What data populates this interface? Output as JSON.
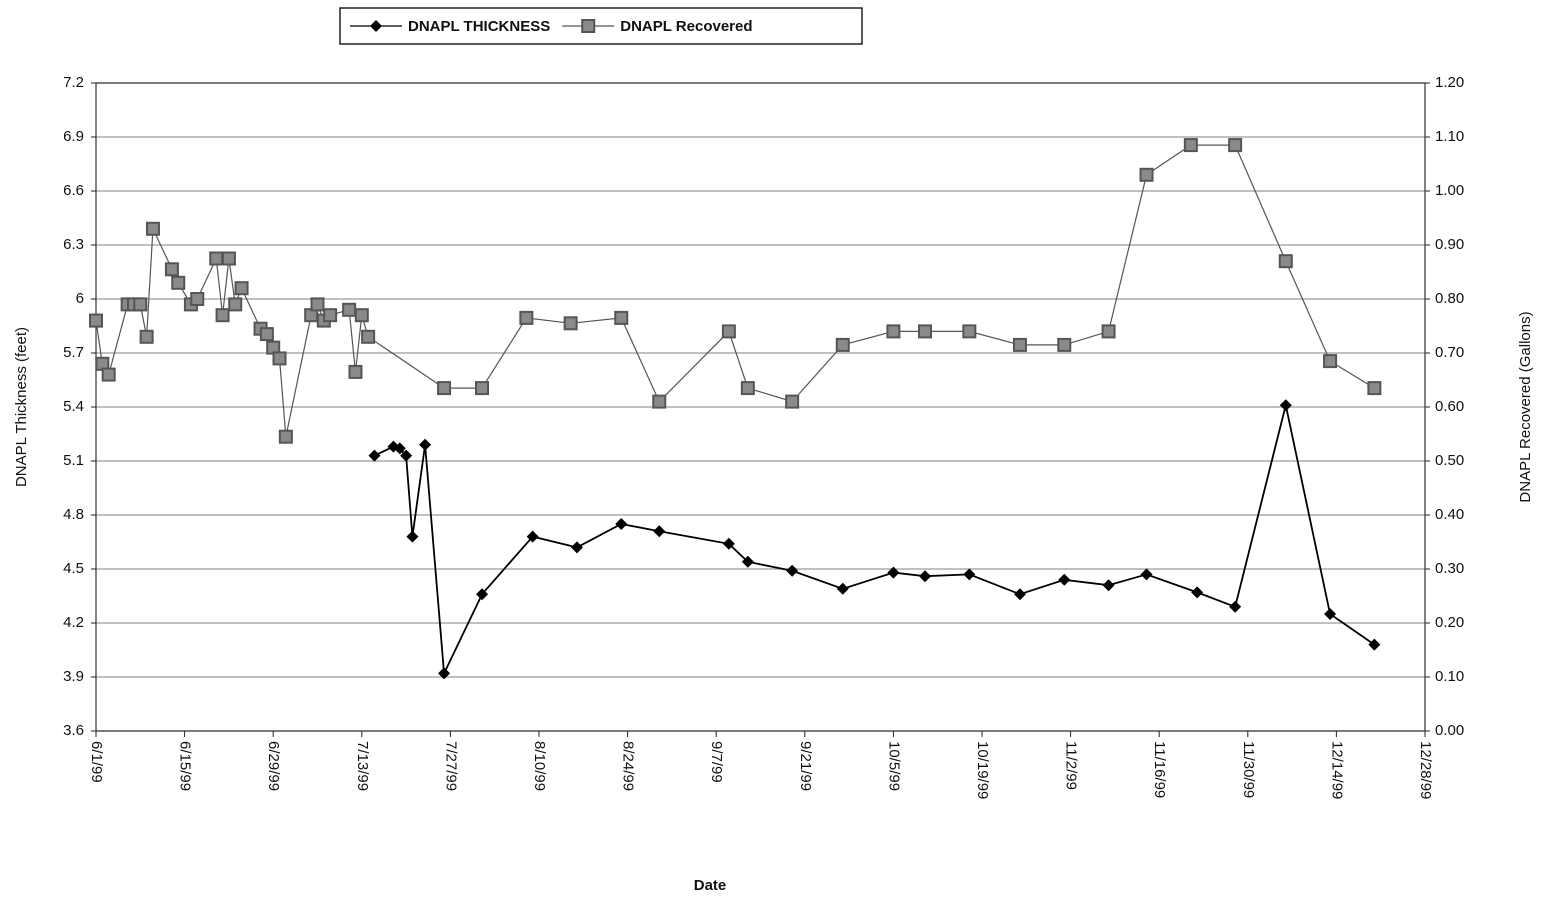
{
  "chart_data": {
    "type": "line",
    "xlabel": "Date",
    "ylabel": "DNAPL Thickness (feet)",
    "y2label": "DNAPL Recovered (Gallons)",
    "xlim": [
      "1999-06-01",
      "1999-12-28"
    ],
    "xticks": [
      {
        "value": "1999-06-01",
        "label": "6/1/99"
      },
      {
        "value": "1999-06-15",
        "label": "6/15/99"
      },
      {
        "value": "1999-06-29",
        "label": "6/29/99"
      },
      {
        "value": "1999-07-13",
        "label": "7/13/99"
      },
      {
        "value": "1999-07-27",
        "label": "7/27/99"
      },
      {
        "value": "1999-08-10",
        "label": "8/10/99"
      },
      {
        "value": "1999-08-24",
        "label": "8/24/99"
      },
      {
        "value": "1999-09-07",
        "label": "9/7/99"
      },
      {
        "value": "1999-09-21",
        "label": "9/21/99"
      },
      {
        "value": "1999-10-05",
        "label": "10/5/99"
      },
      {
        "value": "1999-10-19",
        "label": "10/19/99"
      },
      {
        "value": "1999-11-02",
        "label": "11/2/99"
      },
      {
        "value": "1999-11-16",
        "label": "11/16/99"
      },
      {
        "value": "1999-11-30",
        "label": "11/30/99"
      },
      {
        "value": "1999-12-14",
        "label": "12/14/99"
      },
      {
        "value": "1999-12-28",
        "label": "12/28/99"
      }
    ],
    "ylim": [
      3.6,
      7.2
    ],
    "yticks": [
      3.6,
      3.9,
      4.2,
      4.5,
      4.8,
      5.1,
      5.4,
      5.7,
      6,
      6.3,
      6.6,
      6.9,
      7.2
    ],
    "y2lim": [
      0,
      1.2
    ],
    "y2ticks": [
      {
        "value": 0,
        "label": "0.00"
      },
      {
        "value": 0.1,
        "label": "0.10"
      },
      {
        "value": 0.2,
        "label": "0.20"
      },
      {
        "value": 0.3,
        "label": "0.30"
      },
      {
        "value": 0.4,
        "label": "0.40"
      },
      {
        "value": 0.5,
        "label": "0.50"
      },
      {
        "value": 0.6,
        "label": "0.60"
      },
      {
        "value": 0.7,
        "label": "0.70"
      },
      {
        "value": 0.8,
        "label": "0.80"
      },
      {
        "value": 0.9,
        "label": "0.90"
      },
      {
        "value": 1.0,
        "label": "1.00"
      },
      {
        "value": 1.1,
        "label": "1.10"
      },
      {
        "value": 1.2,
        "label": "1.20"
      }
    ],
    "grid": true,
    "legend": "top",
    "series": [
      {
        "name": "DNAPL THICKNESS",
        "color": "#000000",
        "marker": "diamond",
        "axis": "y",
        "x": [
          "1999-07-15",
          "1999-07-18",
          "1999-07-19",
          "1999-07-20",
          "1999-07-21",
          "1999-07-23",
          "1999-07-26",
          "1999-08-01",
          "1999-08-09",
          "1999-08-16",
          "1999-08-23",
          "1999-08-29",
          "1999-09-09",
          "1999-09-12",
          "1999-09-19",
          "1999-09-27",
          "1999-10-05",
          "1999-10-10",
          "1999-10-17",
          "1999-10-25",
          "1999-11-01",
          "1999-11-08",
          "1999-11-14",
          "1999-11-22",
          "1999-11-28",
          "1999-12-06",
          "1999-12-13",
          "1999-12-20"
        ],
        "values": [
          5.13,
          5.18,
          5.17,
          5.13,
          4.68,
          5.19,
          3.92,
          4.36,
          4.68,
          4.62,
          4.75,
          4.71,
          4.64,
          4.54,
          4.49,
          4.39,
          4.48,
          4.46,
          4.47,
          4.36,
          4.44,
          4.41,
          4.47,
          4.37,
          4.29,
          5.41,
          4.25,
          4.08
        ]
      },
      {
        "name": "DNAPL Recovered",
        "color": "#555555",
        "marker": "square",
        "axis": "y2",
        "x": [
          "1999-06-01",
          "1999-06-02",
          "1999-06-03",
          "1999-06-06",
          "1999-06-07",
          "1999-06-08",
          "1999-06-09",
          "1999-06-10",
          "1999-06-13",
          "1999-06-14",
          "1999-06-16",
          "1999-06-17",
          "1999-06-20",
          "1999-06-21",
          "1999-06-22",
          "1999-06-23",
          "1999-06-24",
          "1999-06-27",
          "1999-06-28",
          "1999-06-29",
          "1999-06-30",
          "1999-07-01",
          "1999-07-05",
          "1999-07-06",
          "1999-07-07",
          "1999-07-08",
          "1999-07-11",
          "1999-07-12",
          "1999-07-13",
          "1999-07-14",
          "1999-07-26",
          "1999-08-01",
          "1999-08-08",
          "1999-08-15",
          "1999-08-23",
          "1999-08-29",
          "1999-09-09",
          "1999-09-12",
          "1999-09-19",
          "1999-09-27",
          "1999-10-05",
          "1999-10-10",
          "1999-10-17",
          "1999-10-25",
          "1999-11-01",
          "1999-11-08",
          "1999-11-14",
          "1999-11-21",
          "1999-11-28",
          "1999-12-06",
          "1999-12-13",
          "1999-12-20"
        ],
        "values": [
          0.76,
          0.68,
          0.66,
          0.79,
          0.79,
          0.79,
          0.73,
          0.93,
          0.855,
          0.83,
          0.79,
          0.8,
          0.875,
          0.77,
          0.875,
          0.79,
          0.82,
          0.745,
          0.735,
          0.71,
          0.69,
          0.545,
          0.77,
          0.79,
          0.76,
          0.77,
          0.78,
          0.665,
          0.77,
          0.73,
          0.635,
          0.635,
          0.765,
          0.755,
          0.765,
          0.61,
          0.74,
          0.635,
          0.61,
          0.715,
          0.74,
          0.74,
          0.74,
          0.715,
          0.715,
          0.74,
          1.03,
          1.085,
          1.085,
          0.87,
          0.685,
          0.635
        ]
      }
    ]
  }
}
